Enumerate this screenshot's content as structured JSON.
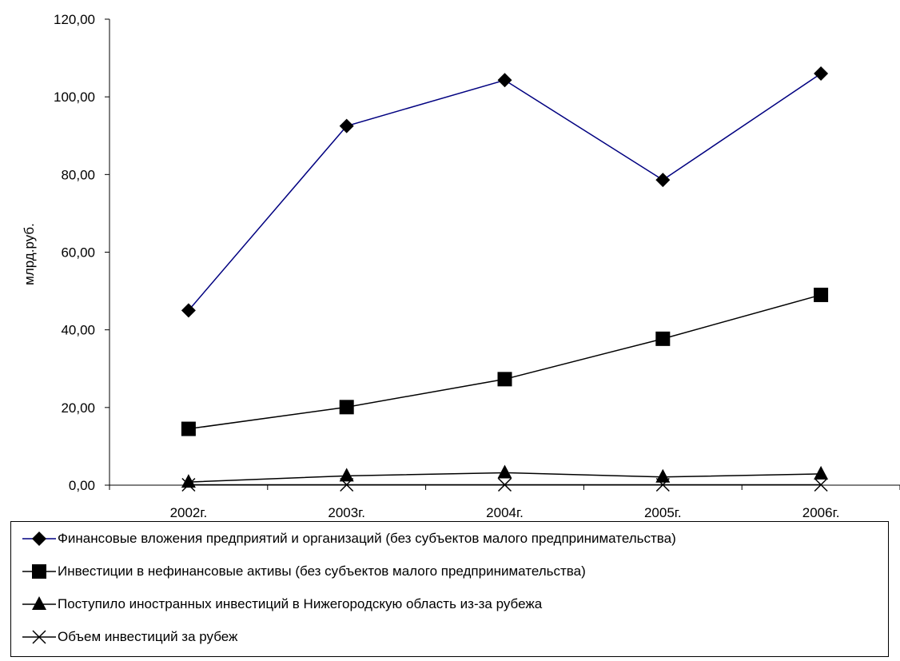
{
  "chart_data": {
    "type": "line",
    "categories": [
      "2002г.",
      "2003г.",
      "2004г.",
      "2005г.",
      "2006г."
    ],
    "ylabel": "млрд.руб.",
    "ylim": [
      0,
      120
    ],
    "yticks": [
      "0,00",
      "20,00",
      "40,00",
      "60,00",
      "80,00",
      "100,00",
      "120,00"
    ],
    "grid": false,
    "legend_position": "bottom",
    "series": [
      {
        "name": "Финансовые вложения предприятий и организаций (без субъектов малого предпринимательства)",
        "values": [
          45.0,
          92.5,
          104.3,
          78.6,
          106.0
        ],
        "marker": "diamond",
        "color": "#000080"
      },
      {
        "name": "Инвестиции в нефинансовые активы (без субъектов малого предпринимательства)",
        "values": [
          14.5,
          20.1,
          27.3,
          37.7,
          49.0
        ],
        "marker": "square",
        "color": "#000000"
      },
      {
        "name": "Поступило иностранных инвестиций в Нижегородскую область из-за рубежа",
        "values": [
          0.8,
          2.4,
          3.2,
          2.1,
          2.9
        ],
        "marker": "triangle",
        "color": "#000000"
      },
      {
        "name": "Объем инвестиций за рубеж",
        "values": [
          0.1,
          0.1,
          0.1,
          0.1,
          0.1
        ],
        "marker": "x",
        "color": "#000000"
      }
    ]
  }
}
